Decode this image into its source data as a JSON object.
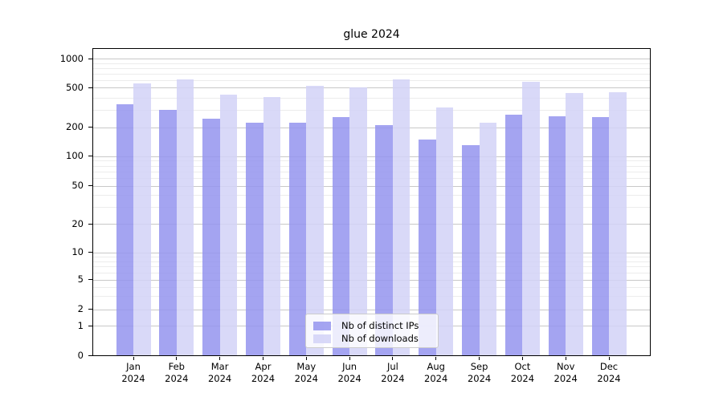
{
  "title": "glue 2024",
  "colors": {
    "background": "#ffffff",
    "bar_distinct_ips": "#9494ee",
    "bar_downloads": "#d2d2f7",
    "grid_major": "#c8c8c8",
    "grid_minor": "#ececec",
    "axis_frame": "#000000",
    "text": "#000000",
    "legend_border": "#cccccc"
  },
  "chart_data": {
    "type": "bar",
    "title": "glue 2024",
    "xlabel": "",
    "ylabel": "",
    "categories": [
      "Jan",
      "Feb",
      "Mar",
      "Apr",
      "May",
      "Jun",
      "Jul",
      "Aug",
      "Sep",
      "Oct",
      "Nov",
      "Dec"
    ],
    "category_sublabel": "2024",
    "series": [
      {
        "name": "Nb of distinct IPs",
        "color": "#9494ee",
        "values": [
          340,
          300,
          245,
          225,
          225,
          255,
          210,
          150,
          130,
          270,
          260,
          255
        ]
      },
      {
        "name": "Nb of downloads",
        "color": "#d2d2f7",
        "values": [
          555,
          610,
          425,
          405,
          525,
          500,
          610,
          320,
          225,
          580,
          440,
          450
        ]
      }
    ],
    "yticks": [
      0,
      1,
      2,
      5,
      10,
      20,
      50,
      100,
      200,
      500,
      1000
    ],
    "ylim": [
      0,
      1260
    ],
    "yscale": "symlog",
    "grid": true,
    "legend_position": "lower center"
  }
}
